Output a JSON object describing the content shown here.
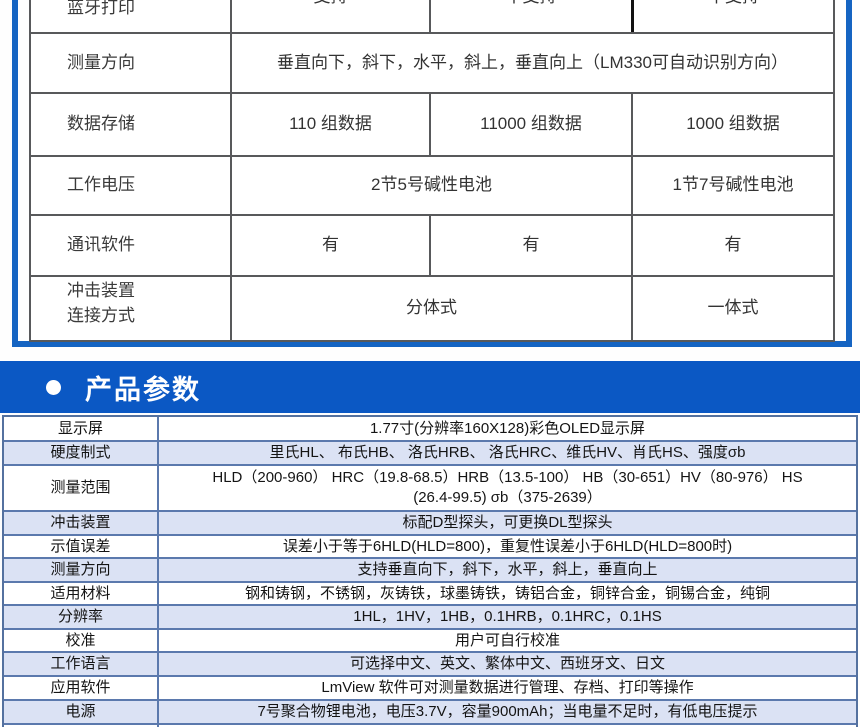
{
  "colors": {
    "frame_blue": "#1564c2",
    "banner_blue": "#0b58c4",
    "grid_gray": "#58595b",
    "param_border": "#5b79ad",
    "row_alt_blue": "#dbe2f4",
    "text_dark": "#333333"
  },
  "comparison": {
    "rows": [
      {
        "label": "蓝牙打印",
        "c1": "支持",
        "c2": "不支持",
        "c3": "不支持"
      },
      {
        "label": "测量方向",
        "value": "垂直向下，斜下，水平，斜上，垂直向上（LM330可自动识别方向）"
      },
      {
        "label": "数据存储",
        "c1": "110 组数据",
        "c2": "11000 组数据",
        "c3": "1000 组数据"
      },
      {
        "label": "工作电压",
        "c12": "2节5号碱性电池",
        "c3": "1节7号碱性电池"
      },
      {
        "label": "通讯软件",
        "c1": "有",
        "c2": "有",
        "c3": "有"
      },
      {
        "label_line1": "冲击装置",
        "label_line2": "连接方式",
        "c12": "分体式",
        "c3": "一体式"
      }
    ]
  },
  "section": {
    "bullet": "●",
    "title": "产品参数"
  },
  "params": {
    "rows": [
      {
        "label": "显示屏",
        "value": "1.77寸(分辨率160X128)彩色OLED显示屏"
      },
      {
        "label": "硬度制式",
        "value": "里氏HL、 布氏HB、 洛氏HRB、 洛氏HRC、维氏HV、肖氏HS、强度σb"
      },
      {
        "label": "测量范围",
        "value_line1": "HLD（200-960） HRC（19.8-68.5）HRB（13.5-100） HB（30-651）HV（80-976） HS",
        "value_line2": "(26.4-99.5)  σb（375-2639）"
      },
      {
        "label": "冲击装置",
        "value": "标配D型探头，可更换DL型探头"
      },
      {
        "label": "示值误差",
        "value": "误差小于等于6HLD(HLD=800)，重复性误差小于6HLD(HLD=800时)"
      },
      {
        "label": "测量方向",
        "value": "支持垂直向下，斜下，水平，斜上，垂直向上"
      },
      {
        "label": "适用材料",
        "value": "钢和铸钢，不锈钢，灰铸铁，球墨铸铁，铸铝合金，铜锌合金，铜锡合金，纯铜"
      },
      {
        "label": "分辨率",
        "value": "1HL，1HV，1HB，0.1HRB，0.1HRC，0.1HS"
      },
      {
        "label": "校准",
        "value": "用户可自行校准"
      },
      {
        "label": "工作语言",
        "value": "可选择中文、英文、繁体中文、西班牙文、日文"
      },
      {
        "label": "应用软件",
        "value": "LmView 软件可对测量数据进行管理、存档、打印等操作"
      },
      {
        "label": "电源",
        "value": "7号聚合物锂电池，电压3.7V，容量900mAh；当电量不足时，有低电压提示"
      }
    ]
  }
}
